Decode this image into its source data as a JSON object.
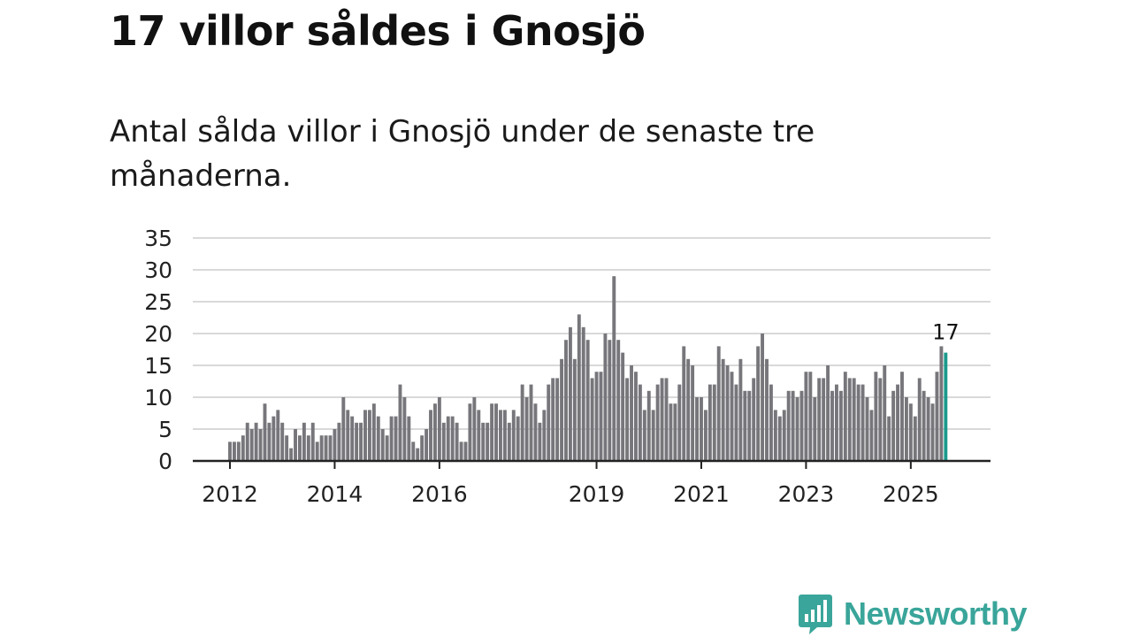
{
  "header": {
    "title": "17 villor såldes i Gnosjö",
    "subtitle": "Antal sålda villor i Gnosjö under de senaste tre månaderna."
  },
  "brand": {
    "name": "Newsworthy",
    "icon": "newsworthy-logo-icon",
    "color": "#3aa59a"
  },
  "colors": {
    "bar": "#76767b",
    "highlight": "#1a9a8c",
    "grid": "#d9d9d9",
    "axis": "#222222"
  },
  "chart_data": {
    "type": "bar",
    "title": "Antal sålda villor i Gnosjö under de senaste tre månaderna.",
    "xlabel": "",
    "ylabel": "",
    "ylim": [
      0,
      35
    ],
    "yticks": [
      0,
      5,
      10,
      15,
      20,
      25,
      30,
      35
    ],
    "grid": true,
    "x_tick_labels": [
      "2012",
      "2014",
      "2016",
      "2019",
      "2021",
      "2023",
      "2025"
    ],
    "start_month": "2012-01",
    "highlight_label": "17",
    "values": [
      3,
      3,
      3,
      4,
      6,
      5,
      6,
      5,
      9,
      6,
      7,
      8,
      6,
      4,
      2,
      5,
      4,
      6,
      4,
      6,
      3,
      4,
      4,
      4,
      5,
      6,
      10,
      8,
      7,
      6,
      6,
      8,
      8,
      9,
      7,
      5,
      4,
      7,
      7,
      12,
      10,
      7,
      3,
      2,
      4,
      5,
      8,
      9,
      10,
      6,
      7,
      7,
      6,
      3,
      3,
      9,
      10,
      8,
      6,
      6,
      9,
      9,
      8,
      8,
      6,
      8,
      7,
      12,
      10,
      12,
      9,
      6,
      8,
      12,
      13,
      13,
      16,
      19,
      21,
      16,
      23,
      21,
      19,
      13,
      14,
      14,
      20,
      19,
      29,
      19,
      17,
      13,
      15,
      14,
      12,
      8,
      11,
      8,
      12,
      13,
      13,
      9,
      9,
      12,
      18,
      16,
      15,
      10,
      10,
      8,
      12,
      12,
      18,
      16,
      15,
      14,
      12,
      16,
      11,
      11,
      13,
      18,
      20,
      16,
      12,
      8,
      7,
      8,
      11,
      11,
      10,
      11,
      14,
      14,
      10,
      13,
      13,
      15,
      11,
      12,
      11,
      14,
      13,
      13,
      12,
      12,
      10,
      8,
      14,
      13,
      15,
      7,
      11,
      12,
      14,
      10,
      9,
      7,
      13,
      11,
      10,
      9,
      14,
      18,
      17
    ]
  }
}
